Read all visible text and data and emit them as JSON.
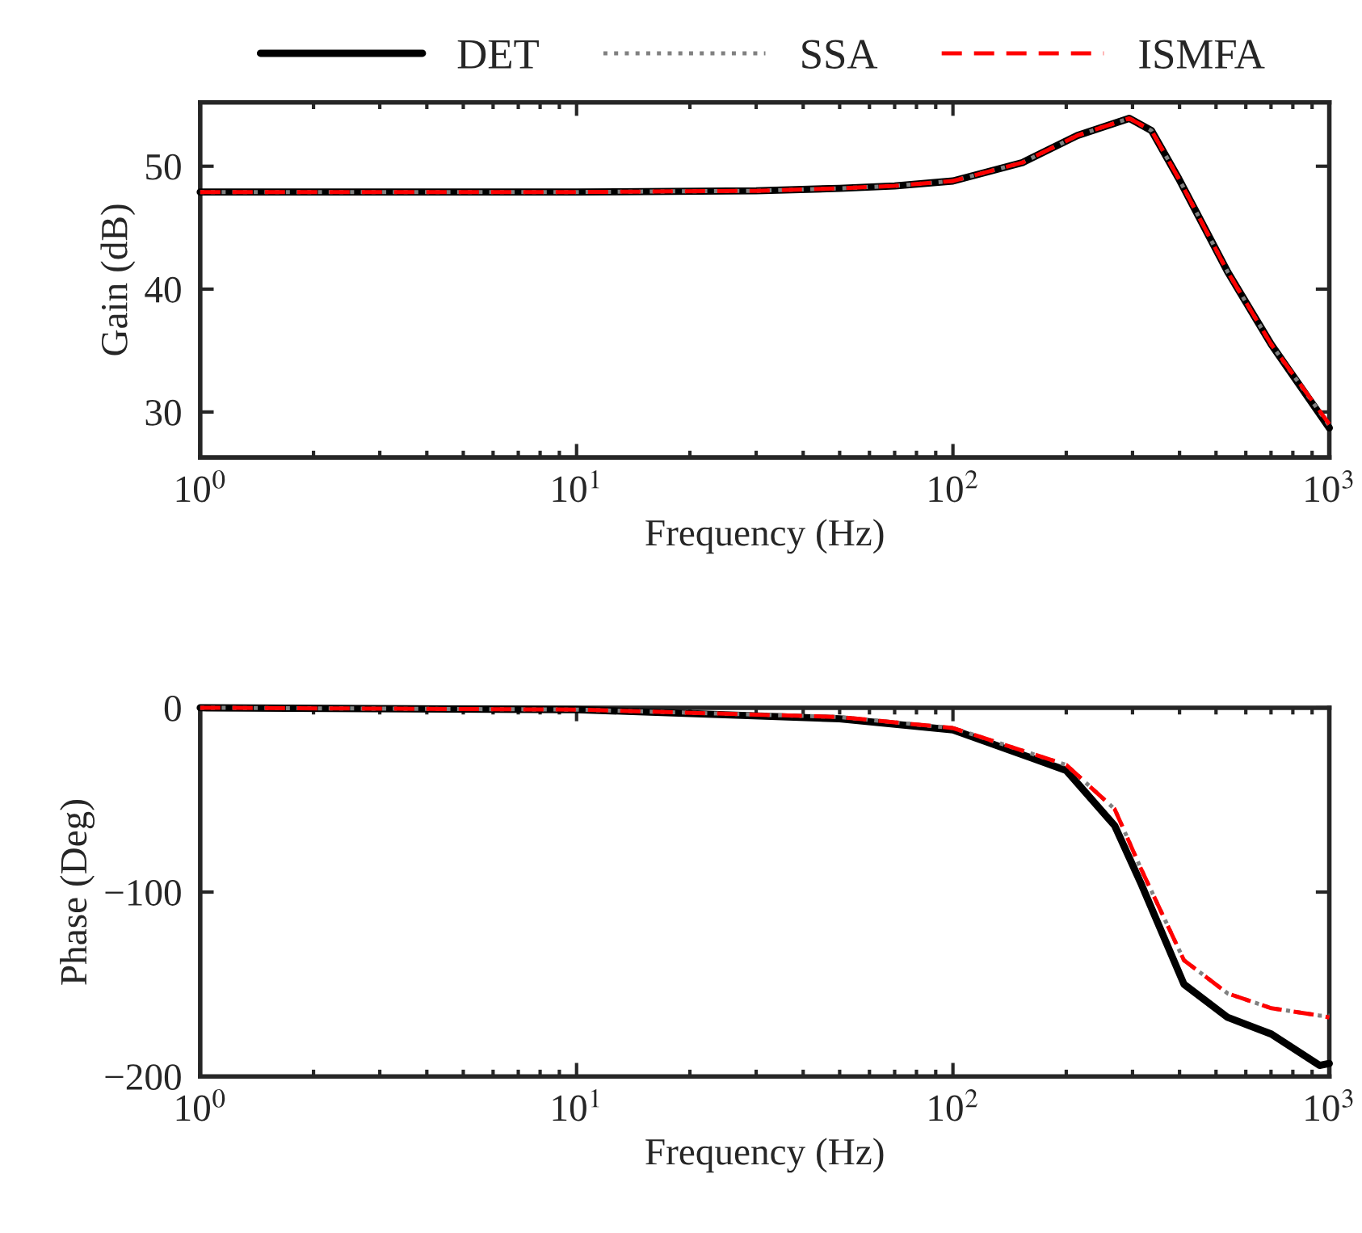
{
  "chart_data": [
    {
      "type": "line",
      "xlabel": "Frequency (Hz)",
      "ylabel": "Gain (dB)",
      "log": "x",
      "legend": "top",
      "grid": false,
      "xlim": [
        1,
        1000
      ],
      "xticks": [
        {
          "value": 1,
          "label": "10$^{0}$"
        },
        {
          "value": 10,
          "label": "10$^{1}$"
        },
        {
          "value": 100,
          "label": "10$^{2}$"
        },
        {
          "value": 1000,
          "label": "10$^{3}$"
        }
      ],
      "ylim": [
        26.3,
        55.2
      ],
      "yticks": [
        30,
        40,
        50
      ],
      "x": [
        1,
        10,
        30,
        50,
        70,
        100,
        153,
        214,
        294,
        337,
        398,
        537,
        701,
        1000
      ],
      "series": [
        {
          "name": "DET",
          "color": "#000000",
          "line_style": "solid",
          "values": [
            47.9,
            47.9,
            48.0,
            48.2,
            48.4,
            48.8,
            50.3,
            52.5,
            53.9,
            52.9,
            49.0,
            41.4,
            35.5,
            28.7
          ]
        },
        {
          "name": "SSA",
          "color": "#808080",
          "line_style": "dotted",
          "values": [
            47.9,
            47.9,
            48.0,
            48.2,
            48.4,
            48.8,
            50.3,
            52.5,
            53.9,
            52.9,
            49.0,
            41.4,
            35.5,
            28.9
          ]
        },
        {
          "name": "ISMFA",
          "color": "#ff0000",
          "line_style": "dashed",
          "values": [
            47.9,
            47.9,
            48.0,
            48.2,
            48.4,
            48.8,
            50.3,
            52.5,
            53.9,
            52.9,
            49.0,
            41.4,
            35.5,
            29.0
          ]
        }
      ]
    },
    {
      "type": "line",
      "xlabel": "Frequency (Hz)",
      "ylabel": "Phase (Deg)",
      "log": "x",
      "grid": false,
      "xlim": [
        1,
        1000
      ],
      "xticks": [
        {
          "value": 1,
          "label": "10$^{0}$"
        },
        {
          "value": 10,
          "label": "10$^{1}$"
        },
        {
          "value": 100,
          "label": "10$^{2}$"
        },
        {
          "value": 1000,
          "label": "10$^{3}$"
        }
      ],
      "ylim": [
        -200,
        0
      ],
      "yticks": [
        {
          "value": -200,
          "label": "−200"
        },
        {
          "value": -100,
          "label": "−100"
        },
        0
      ],
      "x": [
        1,
        10,
        50,
        100,
        200,
        269,
        317,
        411,
        537,
        701,
        942,
        1000
      ],
      "series": [
        {
          "color": "#000000",
          "line_style": "solid",
          "values": [
            0,
            -1,
            -6,
            -12,
            -34,
            -64,
            -96,
            -150,
            -168,
            -177,
            -194,
            -193
          ]
        },
        {
          "color": "#808080",
          "line_style": "dotted",
          "values": [
            0,
            -1,
            -5,
            -11,
            -31,
            -55,
            -88,
            -137,
            -155,
            -163,
            -167,
            -167
          ]
        },
        {
          "color": "#ff0000",
          "line_style": "dashed",
          "values": [
            0,
            -1,
            -5,
            -11,
            -31,
            -55,
            -88,
            -137,
            -155,
            -163,
            -167,
            -168
          ]
        }
      ]
    }
  ]
}
